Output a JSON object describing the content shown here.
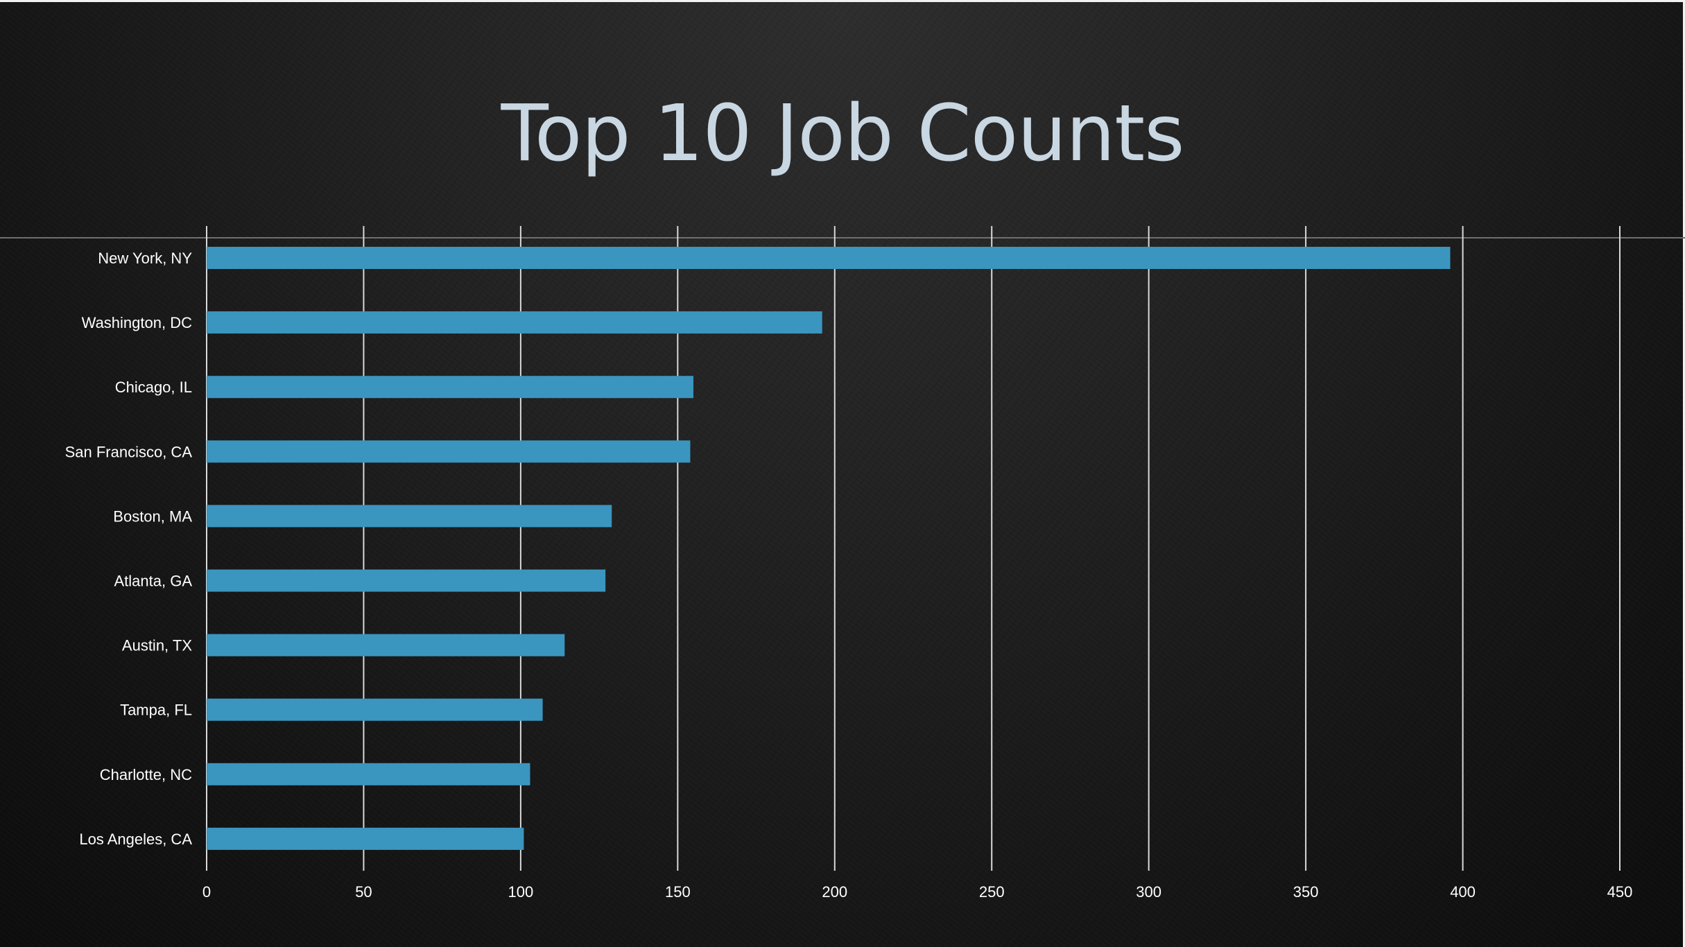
{
  "slide": {
    "title": "Top 10 Job Counts"
  },
  "colors": {
    "bar": "#3a96bf",
    "gridline": "#d9d9d9",
    "text": "#ffffff",
    "title": "#c9d7e2"
  },
  "chart_data": {
    "type": "bar",
    "orientation": "horizontal",
    "title": "Top 10 Job Counts",
    "xlabel": "",
    "ylabel": "",
    "categories": [
      "New York, NY",
      "Washington, DC",
      "Chicago, IL",
      "San Francisco, CA",
      "Boston, MA",
      "Atlanta, GA",
      "Austin, TX",
      "Tampa, FL",
      "Charlotte, NC",
      "Los Angeles, CA"
    ],
    "values": [
      396,
      196,
      155,
      154,
      129,
      127,
      114,
      107,
      103,
      101
    ],
    "xlim": [
      0,
      450
    ],
    "xticks": [
      0,
      50,
      100,
      150,
      200,
      250,
      300,
      350,
      400,
      450
    ],
    "grid": true,
    "legend": "none"
  }
}
